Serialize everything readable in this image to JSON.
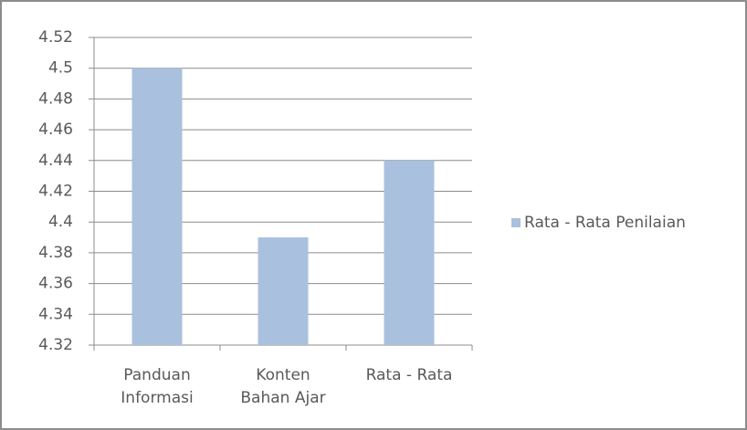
{
  "chart_data": {
    "type": "bar",
    "categories": [
      "Panduan Informasi",
      "Konten Bahan Ajar",
      "Rata - Rata"
    ],
    "series": [
      {
        "name": "Rata - Rata Penilaian",
        "color": "#a9c0de",
        "values": [
          4.5,
          4.39,
          4.44
        ]
      }
    ],
    "ylim": [
      4.32,
      4.52
    ],
    "yticks": [
      4.32,
      4.34,
      4.36,
      4.38,
      4.4,
      4.42,
      4.44,
      4.46,
      4.48,
      4.5,
      4.52
    ],
    "grid": true,
    "legend": "right"
  }
}
